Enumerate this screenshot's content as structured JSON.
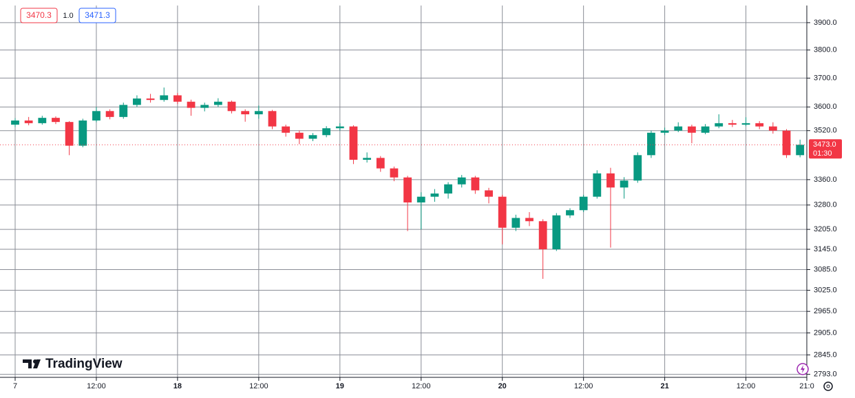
{
  "chart_data": {
    "type": "candlestick",
    "legend": {
      "bid": "3470.3",
      "spread": "1.0",
      "ask": "3471.3"
    },
    "brand": "TradingView",
    "last_price": {
      "value": 3473.0,
      "label": "3473.0",
      "countdown": "01:30"
    },
    "log_scale": true,
    "grid": true,
    "up_color": "#089981",
    "down_color": "#f23645",
    "x": [
      0,
      2,
      4,
      6,
      8,
      10,
      12,
      14,
      16,
      18,
      20,
      22,
      24,
      26,
      28,
      30,
      32,
      34,
      36,
      38,
      40,
      42,
      44,
      46,
      48,
      50,
      52,
      54,
      56,
      58,
      60,
      62,
      64,
      66,
      68,
      70,
      72,
      74,
      76,
      78,
      80,
      82,
      84,
      86,
      88,
      90,
      92,
      94,
      96,
      98,
      100,
      102,
      104,
      106,
      108,
      110,
      112,
      114,
      116
    ],
    "open": [
      3540,
      3554,
      3545,
      3563,
      3549,
      3470,
      3554,
      3586,
      3566,
      3607,
      3629,
      3624,
      3640,
      3618,
      3597,
      3607,
      3618,
      3586,
      3575,
      3586,
      3534,
      3513,
      3493,
      3505,
      3528,
      3534,
      3424,
      3430,
      3396,
      3367,
      3288,
      3306,
      3316,
      3345,
      3367,
      3326,
      3306,
      3210,
      3240,
      3230,
      3145,
      3248,
      3264,
      3306,
      3380,
      3335,
      3357,
      3439,
      3513,
      3520,
      3534,
      3513,
      3534,
      3545,
      3540,
      3545,
      3534,
      3520,
      3439
    ],
    "high": [
      3562,
      3566,
      3570,
      3568,
      3552,
      3560,
      3600,
      3592,
      3615,
      3640,
      3645,
      3667,
      3648,
      3625,
      3615,
      3630,
      3622,
      3592,
      3605,
      3590,
      3540,
      3520,
      3512,
      3535,
      3545,
      3538,
      3448,
      3436,
      3402,
      3372,
      3320,
      3330,
      3352,
      3375,
      3372,
      3334,
      3312,
      3250,
      3258,
      3236,
      3255,
      3270,
      3312,
      3390,
      3398,
      3368,
      3448,
      3520,
      3530,
      3548,
      3540,
      3542,
      3575,
      3556,
      3565,
      3552,
      3548,
      3525,
      3490
    ],
    "low": [
      3532,
      3538,
      3540,
      3542,
      3439,
      3465,
      3548,
      3558,
      3560,
      3600,
      3615,
      3618,
      3610,
      3570,
      3585,
      3600,
      3578,
      3550,
      3560,
      3525,
      3500,
      3475,
      3485,
      3498,
      3520,
      3410,
      3415,
      3385,
      3355,
      3200,
      3205,
      3290,
      3300,
      3335,
      3315,
      3285,
      3160,
      3200,
      3215,
      3058,
      3140,
      3240,
      3258,
      3300,
      3150,
      3300,
      3350,
      3430,
      3505,
      3515,
      3478,
      3508,
      3528,
      3532,
      3535,
      3525,
      3510,
      3430,
      3432
    ],
    "close": [
      3554,
      3545,
      3563,
      3549,
      3470,
      3554,
      3586,
      3566,
      3607,
      3629,
      3624,
      3640,
      3618,
      3597,
      3607,
      3618,
      3586,
      3575,
      3586,
      3534,
      3513,
      3493,
      3505,
      3528,
      3534,
      3424,
      3430,
      3396,
      3367,
      3288,
      3306,
      3316,
      3345,
      3367,
      3326,
      3306,
      3210,
      3240,
      3230,
      3145,
      3248,
      3264,
      3306,
      3380,
      3335,
      3357,
      3439,
      3513,
      3520,
      3534,
      3513,
      3534,
      3545,
      3540,
      3545,
      3534,
      3520,
      3439,
      3473
    ],
    "xlim": [
      0,
      117
    ],
    "xticks": [
      {
        "value": 0,
        "label": "7"
      },
      {
        "value": 12,
        "label": "12:00"
      },
      {
        "value": 24,
        "label": "18"
      },
      {
        "value": 36,
        "label": "12:00"
      },
      {
        "value": 48,
        "label": "19"
      },
      {
        "value": 60,
        "label": "12:00"
      },
      {
        "value": 72,
        "label": "20"
      },
      {
        "value": 84,
        "label": "12:00"
      },
      {
        "value": 96,
        "label": "21"
      },
      {
        "value": 108,
        "label": "12:00"
      },
      {
        "value": 117,
        "label": "21:0"
      }
    ],
    "ylim": [
      2785,
      3964
    ],
    "yticks": [
      {
        "value": 3900,
        "label": "3900.0"
      },
      {
        "value": 3800,
        "label": "3800.0"
      },
      {
        "value": 3700,
        "label": "3700.0"
      },
      {
        "value": 3600,
        "label": "3600.0"
      },
      {
        "value": 3520,
        "label": "3520.0"
      },
      {
        "value": 3360,
        "label": "3360.0"
      },
      {
        "value": 3280,
        "label": "3280.0"
      },
      {
        "value": 3205,
        "label": "3205.0"
      },
      {
        "value": 3145,
        "label": "3145.0"
      },
      {
        "value": 3085,
        "label": "3085.0"
      },
      {
        "value": 3025,
        "label": "3025.0"
      },
      {
        "value": 2965,
        "label": "2965.0"
      },
      {
        "value": 2905,
        "label": "2905.0"
      },
      {
        "value": 2845,
        "label": "2845.0"
      },
      {
        "value": 2793,
        "label": "2793.0"
      }
    ]
  }
}
